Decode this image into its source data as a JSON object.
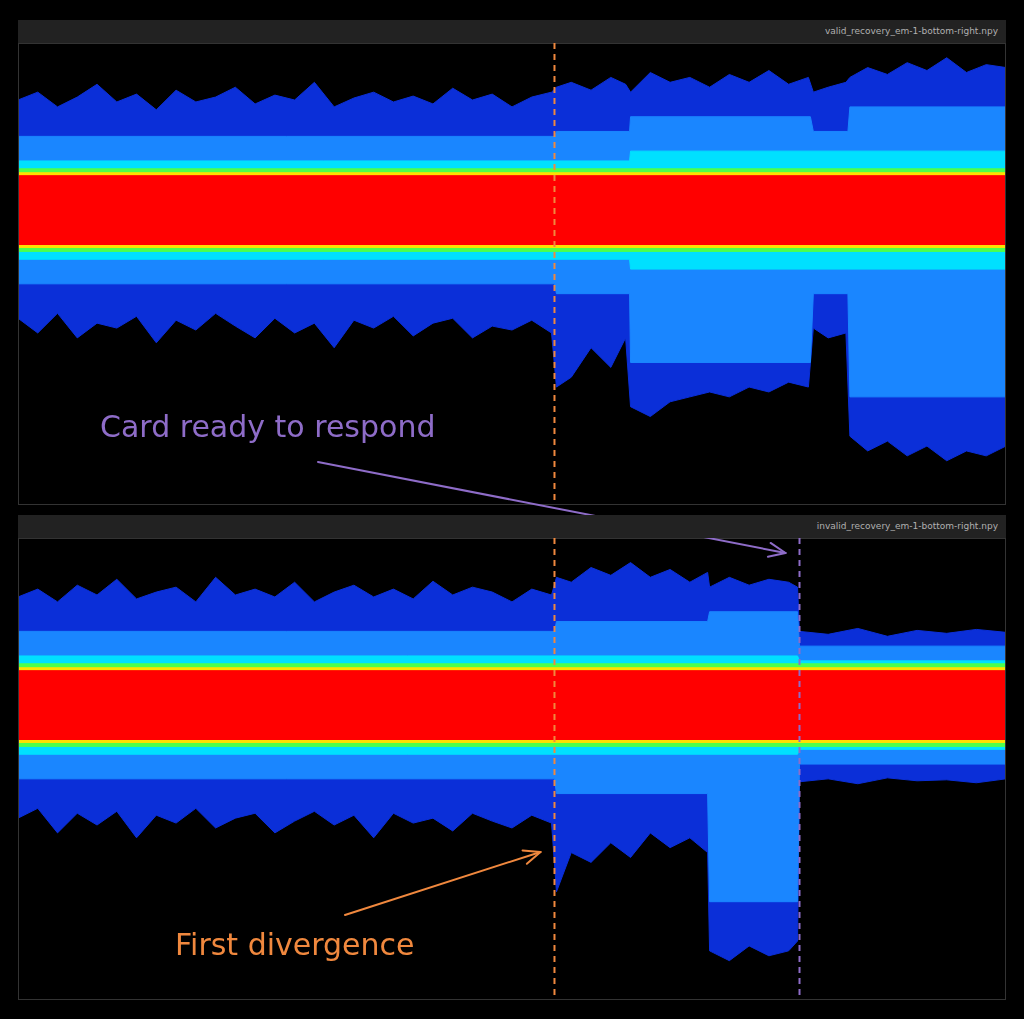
{
  "chart_data": [
    {
      "type": "line",
      "title": "valid_recovery_em-1-bottom-right.npy",
      "xlim": [
        0,
        1000
      ],
      "ylim": [
        -3,
        1.7
      ],
      "grid": false,
      "tick_labels": false,
      "bands": [
        {
          "color": "#0b2fd8",
          "x": [
            0,
            20,
            40,
            60,
            80,
            100,
            120,
            140,
            160,
            180,
            200,
            220,
            240,
            260,
            280,
            300,
            320,
            340,
            360,
            380,
            400,
            420,
            440,
            460,
            480,
            500,
            520,
            540,
            545,
            560,
            580,
            600,
            615,
            620,
            640,
            660,
            680,
            700,
            720,
            740,
            760,
            780,
            800,
            805,
            820,
            838,
            842,
            860,
            880,
            900,
            920,
            940,
            960,
            980,
            1000
          ],
          "upper": [
            1.12,
            1.2,
            1.05,
            1.15,
            1.28,
            1.1,
            1.18,
            1.02,
            1.22,
            1.1,
            1.15,
            1.25,
            1.08,
            1.17,
            1.12,
            1.3,
            1.05,
            1.14,
            1.2,
            1.1,
            1.16,
            1.08,
            1.24,
            1.12,
            1.18,
            1.05,
            1.15,
            1.2,
            1.25,
            1.3,
            1.22,
            1.35,
            1.28,
            1.2,
            1.4,
            1.3,
            1.35,
            1.25,
            1.38,
            1.3,
            1.42,
            1.28,
            1.35,
            1.2,
            1.25,
            1.3,
            1.35,
            1.45,
            1.38,
            1.5,
            1.42,
            1.55,
            1.4,
            1.48,
            1.45
          ],
          "lower": [
            -1.1,
            -1.25,
            -1.05,
            -1.3,
            -1.15,
            -1.2,
            -1.08,
            -1.35,
            -1.12,
            -1.22,
            -1.05,
            -1.18,
            -1.3,
            -1.1,
            -1.25,
            -1.15,
            -1.4,
            -1.12,
            -1.2,
            -1.08,
            -1.28,
            -1.15,
            -1.1,
            -1.3,
            -1.18,
            -1.22,
            -1.12,
            -1.25,
            -1.8,
            -1.7,
            -1.4,
            -1.6,
            -1.3,
            -2.0,
            -2.1,
            -1.95,
            -1.9,
            -1.85,
            -1.9,
            -1.8,
            -1.85,
            -1.75,
            -1.8,
            -1.2,
            -1.3,
            -1.25,
            -2.3,
            -2.45,
            -2.35,
            -2.5,
            -2.4,
            -2.55,
            -2.45,
            -2.5,
            -2.4
          ]
        },
        {
          "color": "#1a86ff",
          "x": [
            0,
            543,
            545,
            619,
            620,
            802,
            805,
            840,
            842,
            1000
          ],
          "upper": [
            0.75,
            0.75,
            0.8,
            0.8,
            0.95,
            0.95,
            0.8,
            0.8,
            1.05,
            1.05
          ],
          "lower": [
            -0.75,
            -0.75,
            -0.85,
            -0.85,
            -1.55,
            -1.55,
            -0.85,
            -0.85,
            -1.9,
            -1.9
          ]
        },
        {
          "color": "#00e0ff",
          "x": [
            0,
            619,
            620,
            1000
          ],
          "upper": [
            0.5,
            0.5,
            0.6,
            0.6
          ],
          "lower": [
            -0.5,
            -0.5,
            -0.6,
            -0.6
          ]
        },
        {
          "color": "#4cff4c",
          "x": [
            0,
            1000
          ],
          "upper": [
            0.42,
            0.42
          ],
          "lower": [
            -0.42,
            -0.42
          ]
        },
        {
          "color": "#ffe000",
          "x": [
            0,
            1000
          ],
          "upper": [
            0.38,
            0.38
          ],
          "lower": [
            -0.38,
            -0.38
          ]
        },
        {
          "color": "#ff0000",
          "x": [
            0,
            1000
          ],
          "upper": [
            0.35,
            0.35
          ],
          "lower": [
            -0.35,
            -0.35
          ]
        }
      ],
      "vlines": [
        {
          "x": 543,
          "color": "#f0883e",
          "line_style": "dashed"
        }
      ],
      "annotations": []
    },
    {
      "type": "line",
      "title": "invalid_recovery_em-1-bottom-right.npy",
      "xlim": [
        0,
        1000
      ],
      "ylim": [
        -3,
        1.7
      ],
      "grid": false,
      "tick_labels": false,
      "bands": [
        {
          "color": "#0b2fd8",
          "x": [
            0,
            20,
            40,
            60,
            80,
            100,
            120,
            140,
            160,
            180,
            200,
            220,
            240,
            260,
            280,
            300,
            320,
            340,
            360,
            380,
            400,
            420,
            440,
            460,
            480,
            500,
            520,
            540,
            545,
            560,
            580,
            600,
            620,
            640,
            660,
            680,
            698,
            700,
            720,
            740,
            760,
            780,
            789,
            791,
            820,
            850,
            880,
            910,
            940,
            970,
            1000
          ],
          "upper": [
            1.1,
            1.18,
            1.05,
            1.22,
            1.12,
            1.28,
            1.08,
            1.15,
            1.2,
            1.05,
            1.3,
            1.12,
            1.18,
            1.1,
            1.25,
            1.05,
            1.15,
            1.22,
            1.1,
            1.18,
            1.08,
            1.26,
            1.12,
            1.2,
            1.15,
            1.05,
            1.18,
            1.12,
            1.3,
            1.25,
            1.4,
            1.32,
            1.45,
            1.3,
            1.38,
            1.25,
            1.35,
            1.2,
            1.3,
            1.22,
            1.28,
            1.25,
            1.2,
            0.75,
            0.72,
            0.78,
            0.7,
            0.76,
            0.73,
            0.77,
            0.74
          ],
          "lower": [
            -1.15,
            -1.05,
            -1.3,
            -1.1,
            -1.22,
            -1.08,
            -1.35,
            -1.12,
            -1.2,
            -1.05,
            -1.25,
            -1.15,
            -1.1,
            -1.3,
            -1.18,
            -1.08,
            -1.22,
            -1.12,
            -1.35,
            -1.1,
            -1.2,
            -1.15,
            -1.28,
            -1.1,
            -1.18,
            -1.25,
            -1.12,
            -1.2,
            -1.9,
            -1.5,
            -1.6,
            -1.4,
            -1.55,
            -1.3,
            -1.45,
            -1.35,
            -1.5,
            -2.5,
            -2.6,
            -2.45,
            -2.55,
            -2.5,
            -2.4,
            -0.78,
            -0.75,
            -0.8,
            -0.74,
            -0.77,
            -0.76,
            -0.79,
            -0.75
          ]
        },
        {
          "color": "#1a86ff",
          "x": [
            0,
            543,
            545,
            698,
            700,
            789,
            791,
            1000
          ],
          "upper": [
            0.75,
            0.75,
            0.85,
            0.85,
            0.95,
            0.95,
            0.6,
            0.6
          ],
          "lower": [
            -0.75,
            -0.75,
            -0.9,
            -0.9,
            -2.0,
            -2.0,
            -0.6,
            -0.6
          ]
        },
        {
          "color": "#00e0ff",
          "x": [
            0,
            789,
            791,
            1000
          ],
          "upper": [
            0.5,
            0.5,
            0.45,
            0.45
          ],
          "lower": [
            -0.5,
            -0.5,
            -0.45,
            -0.45
          ]
        },
        {
          "color": "#4cff4c",
          "x": [
            0,
            1000
          ],
          "upper": [
            0.42,
            0.42
          ],
          "lower": [
            -0.42,
            -0.42
          ]
        },
        {
          "color": "#ffe000",
          "x": [
            0,
            1000
          ],
          "upper": [
            0.38,
            0.38
          ],
          "lower": [
            -0.38,
            -0.38
          ]
        },
        {
          "color": "#ff0000",
          "x": [
            0,
            1000
          ],
          "upper": [
            0.35,
            0.35
          ],
          "lower": [
            -0.35,
            -0.35
          ]
        }
      ],
      "vlines": [
        {
          "x": 543,
          "color": "#f0883e",
          "line_style": "dashed"
        },
        {
          "x": 791,
          "color": "#8e6cc8",
          "line_style": "dashed"
        }
      ],
      "annotations": [
        {
          "text": "First divergence",
          "x": 543,
          "color": "#f0883e"
        },
        {
          "text": "Card ready to respond",
          "x": 791,
          "color": "#8e6cc8"
        }
      ]
    }
  ]
}
